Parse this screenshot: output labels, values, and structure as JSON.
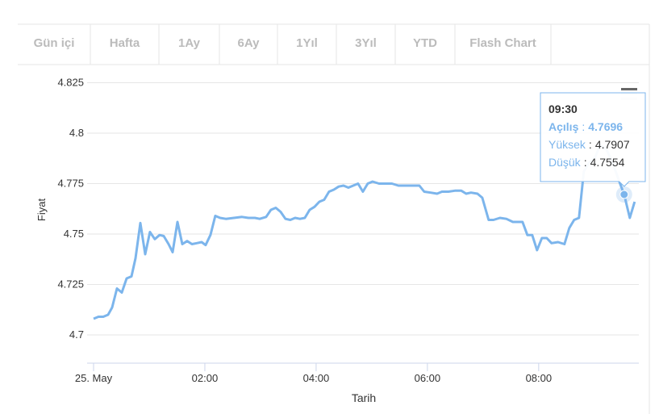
{
  "tabs": [
    "Gün içi",
    "Hafta",
    "1Ay",
    "6Ay",
    "1Yıl",
    "3Yıl",
    "YTD",
    "Flash Chart"
  ],
  "chart_data": {
    "type": "line",
    "x_label": "Tarih",
    "y_label": "Fiyat",
    "xlim": [
      0,
      9.8
    ],
    "ylim": [
      4.686,
      4.832
    ],
    "xticks": [
      {
        "value": 0,
        "label": "25. May"
      },
      {
        "value": 2,
        "label": "02:00"
      },
      {
        "value": 4,
        "label": "04:00"
      },
      {
        "value": 6,
        "label": "06:00"
      },
      {
        "value": 8,
        "label": "08:00"
      }
    ],
    "yticks": [
      {
        "value": 4.7,
        "label": "4.7"
      },
      {
        "value": 4.725,
        "label": "4.725"
      },
      {
        "value": 4.75,
        "label": "4.75"
      },
      {
        "value": 4.775,
        "label": "4.775"
      },
      {
        "value": 4.8,
        "label": "4.8"
      },
      {
        "value": 4.825,
        "label": "4.825"
      }
    ],
    "grid": true,
    "series": [
      {
        "name": "Fiyat",
        "color": "#7cb5ec",
        "x": [
          0,
          0.087,
          0.174,
          0.261,
          0.333,
          0.42,
          0.507,
          0.594,
          0.681,
          0.754,
          0.841,
          0.928,
          1.014,
          1.101,
          1.188,
          1.261,
          1.348,
          1.42,
          1.507,
          1.594,
          1.681,
          1.768,
          1.855,
          1.942,
          2.014,
          2.101,
          2.188,
          2.275,
          2.377,
          2.522,
          2.667,
          2.783,
          2.899,
          2.986,
          3.101,
          3.188,
          3.275,
          3.362,
          3.449,
          3.536,
          3.623,
          3.71,
          3.797,
          3.884,
          3.971,
          4.058,
          4.145,
          4.232,
          4.319,
          4.406,
          4.493,
          4.58,
          4.667,
          4.754,
          4.841,
          4.928,
          5.014,
          5.13,
          5.246,
          5.362,
          5.478,
          5.594,
          5.71,
          5.855,
          5.942,
          6.058,
          6.174,
          6.261,
          6.377,
          6.493,
          6.609,
          6.696,
          6.783,
          6.899,
          6.986,
          7.101,
          7.188,
          7.304,
          7.42,
          7.536,
          7.71,
          7.797,
          7.884,
          7.971,
          8.058,
          8.145,
          8.232,
          8.348,
          8.464,
          8.551,
          8.638,
          8.725,
          8.812,
          8.899,
          9.014,
          9.101,
          9.217,
          9.333,
          9.449,
          9.536,
          9.638,
          9.725
        ],
        "values": [
          4.708,
          4.709,
          4.709,
          4.71,
          4.7136,
          4.723,
          4.721,
          4.728,
          4.729,
          4.738,
          4.7555,
          4.74,
          4.751,
          4.7475,
          4.7495,
          4.749,
          4.745,
          4.741,
          4.756,
          4.745,
          4.7465,
          4.745,
          4.7455,
          4.746,
          4.7445,
          4.7495,
          4.759,
          4.758,
          4.7575,
          4.758,
          4.7585,
          4.758,
          4.758,
          4.7575,
          4.7585,
          4.762,
          4.763,
          4.761,
          4.7575,
          4.757,
          4.758,
          4.7575,
          4.758,
          4.762,
          4.7635,
          4.766,
          4.767,
          4.771,
          4.772,
          4.7735,
          4.774,
          4.773,
          4.774,
          4.775,
          4.771,
          4.775,
          4.776,
          4.775,
          4.775,
          4.775,
          4.774,
          4.774,
          4.774,
          4.774,
          4.771,
          4.7705,
          4.77,
          4.771,
          4.771,
          4.7715,
          4.7715,
          4.77,
          4.7705,
          4.77,
          4.768,
          4.757,
          4.757,
          4.758,
          4.7575,
          4.756,
          4.756,
          4.7495,
          4.7495,
          4.742,
          4.748,
          4.748,
          4.7455,
          4.746,
          4.745,
          4.753,
          4.757,
          4.758,
          4.781,
          4.785,
          4.788,
          4.794,
          4.792,
          4.785,
          4.776,
          4.7696,
          4.758,
          4.766
        ]
      }
    ],
    "tooltip": {
      "point": 99,
      "title": "09:30",
      "separator": ":",
      "rows": [
        {
          "label": "Açılış",
          "value": "4.7696"
        },
        {
          "label": "Yüksek",
          "value": "4.7907"
        },
        {
          "label": "Düşük",
          "value": "4.7554"
        }
      ]
    }
  }
}
